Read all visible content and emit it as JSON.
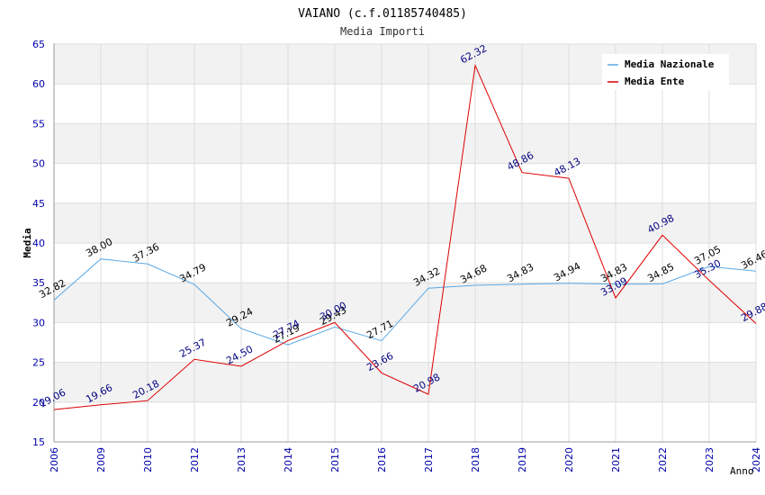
{
  "chart_data": {
    "type": "line",
    "title": "VAIANO (c.f.01185740485)",
    "subtitle": "Media Importi",
    "xlabel": "Anno",
    "ylabel": "Media",
    "categories": [
      "2006",
      "2009",
      "2010",
      "2012",
      "2013",
      "2014",
      "2015",
      "2016",
      "2017",
      "2018",
      "2019",
      "2020",
      "2021",
      "2022",
      "2023",
      "2024"
    ],
    "ylim": [
      15,
      65
    ],
    "yticks": [
      15,
      20,
      25,
      30,
      35,
      40,
      45,
      50,
      55,
      60,
      65
    ],
    "grid": true,
    "legend_position": "top-right",
    "series": [
      {
        "name": "Media Nazionale",
        "color": "#5aa9e6",
        "label_color": "#000000",
        "values": [
          32.82,
          38.0,
          37.36,
          34.79,
          29.24,
          27.19,
          29.43,
          27.71,
          34.32,
          34.68,
          34.83,
          34.94,
          34.83,
          34.85,
          37.05,
          36.46
        ],
        "labels": [
          "32.82",
          "38.00",
          "37.36",
          "34.79",
          "29.24",
          "27.19",
          "29.43",
          "27.71",
          "34.32",
          "34.68",
          "34.83",
          "34.94",
          "34.83",
          "34.85",
          "37.05",
          "36.46"
        ]
      },
      {
        "name": "Media Ente",
        "color": "#dd0000",
        "label_color": "#000080",
        "values": [
          19.06,
          19.66,
          20.18,
          25.37,
          24.5,
          27.74,
          30.0,
          23.66,
          20.98,
          62.32,
          48.86,
          48.13,
          33.09,
          40.98,
          35.3,
          29.88
        ],
        "labels": [
          "19.06",
          "19.66",
          "20.18",
          "25.37",
          "24.50",
          "27.74",
          "30.00",
          "23.66",
          "20.98",
          "62.32",
          "48.86",
          "48.13",
          "33.09",
          "40.98",
          "35.30",
          "29.88"
        ]
      }
    ]
  },
  "colors": {
    "band": "#f2f2f2",
    "gridline": "#dddddd",
    "axis_tick_text": "#0000aa",
    "title_text": "#000000",
    "subtitle_text": "#333333"
  }
}
